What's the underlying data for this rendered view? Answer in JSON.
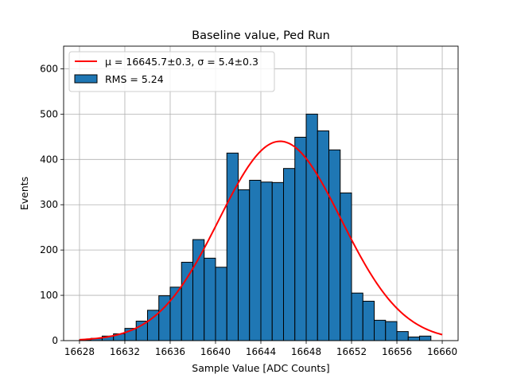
{
  "chart_data": {
    "type": "bar",
    "title": "Baseline value, Ped Run",
    "xlabel": "Sample Value [ADC Counts]",
    "ylabel": "Events",
    "xlim": [
      16626.6,
      16661.4
    ],
    "ylim": [
      0,
      650
    ],
    "x_ticks": [
      16628,
      16632,
      16636,
      16640,
      16644,
      16648,
      16652,
      16656,
      16660
    ],
    "y_ticks": [
      0,
      100,
      200,
      300,
      400,
      500,
      600
    ],
    "grid": true,
    "legend_position": "top-left",
    "bar_color": "#1f77b4",
    "fit_color": "#ff0000",
    "histogram": {
      "label": "RMS = 5.24",
      "bin_edges": [
        16628,
        16629,
        16630,
        16631,
        16632,
        16633,
        16634,
        16635,
        16636,
        16637,
        16638,
        16639,
        16640,
        16641,
        16642,
        16643,
        16644,
        16645,
        16646,
        16647,
        16648,
        16649,
        16650,
        16651,
        16652,
        16653,
        16654,
        16655,
        16656,
        16657,
        16658,
        16659,
        16660
      ],
      "counts": [
        2,
        5,
        10,
        15,
        27,
        43,
        67,
        99,
        118,
        173,
        223,
        182,
        162,
        414,
        333,
        354,
        350,
        349,
        380,
        449,
        500,
        463,
        421,
        326,
        105,
        87,
        45,
        42,
        20,
        8,
        10,
        0
      ]
    },
    "fit": {
      "label": "μ = 16645.7±0.3, σ = 5.4±0.3",
      "mu": 16645.7,
      "sigma": 5.4,
      "amplitude": 440,
      "x_range": [
        16628,
        16660
      ]
    }
  }
}
